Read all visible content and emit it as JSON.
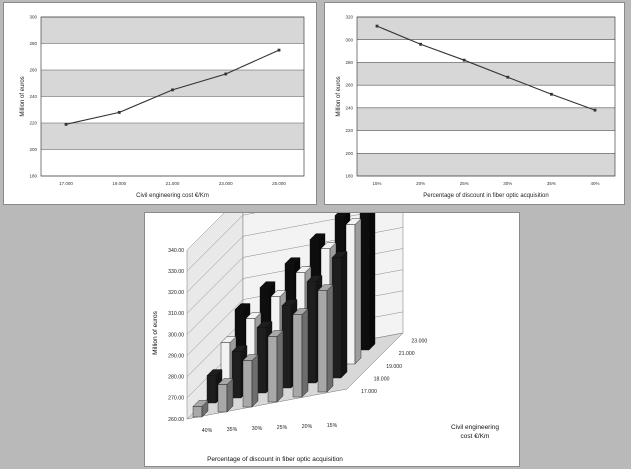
{
  "chart_data": [
    {
      "type": "line",
      "xlabel": "Civil engineering cost €/Km",
      "ylabel": "Million of euros",
      "x_ticks": [
        "17.000",
        "19.000",
        "21.000",
        "23.000",
        "25.000"
      ],
      "y_ticks": [
        "300",
        "280",
        "260",
        "240",
        "220",
        "200",
        "180"
      ],
      "x": [
        17000,
        19000,
        21000,
        23000,
        25000
      ],
      "y": [
        219,
        228,
        245,
        257,
        275
      ],
      "ylim": [
        180,
        300
      ],
      "grid": true,
      "colors": {
        "line": "#333333",
        "band": "#d7d7d7"
      }
    },
    {
      "type": "line",
      "xlabel": "Percentage of discount in fiber optic acquisition",
      "ylabel": "Million of euros",
      "x_ticks": [
        "15%",
        "20%",
        "25%",
        "30%",
        "35%",
        "40%"
      ],
      "y_ticks": [
        "320",
        "300",
        "280",
        "260",
        "240",
        "220",
        "200",
        "180"
      ],
      "x": [
        15,
        20,
        25,
        30,
        35,
        40
      ],
      "y": [
        312,
        296,
        282,
        267,
        252,
        238
      ],
      "ylim": [
        180,
        320
      ],
      "grid": true,
      "colors": {
        "line": "#333333",
        "band": "#d7d7d7"
      }
    },
    {
      "type": "bar",
      "subtype": "3d-bar",
      "ylabel": "Million of euros",
      "xlabel": "Percentage of discount in fiber optic acquisition",
      "zlabel_line1": "Civil engineering",
      "zlabel_line2": "cost €/Km",
      "y_ticks": [
        "340.00",
        "330.00",
        "320.00",
        "310.00",
        "300.00",
        "290.00",
        "280.00",
        "270.00",
        "260.00"
      ],
      "ylim": [
        260,
        340
      ],
      "categories": [
        "40%",
        "35%",
        "30%",
        "25%",
        "20%",
        "15%"
      ],
      "depth_categories": [
        "17.000",
        "19.000",
        "21.000",
        "23.000"
      ],
      "depth_ticks": [
        "23.000",
        "21.000",
        "19.000",
        "18.000",
        "17.000"
      ],
      "series": [
        {
          "values": [
            265,
            273,
            282,
            291,
            299,
            308
          ]
        },
        {
          "values": [
            273,
            282,
            291,
            299,
            308,
            317
          ]
        },
        {
          "values": [
            282,
            291,
            299,
            308,
            317,
            326
          ]
        },
        {
          "values": [
            291,
            299,
            308,
            317,
            326,
            335
          ]
        }
      ],
      "colors": {
        "front": "#a8a8a8",
        "mid1": "#1e1e1e",
        "mid2": "#f2f2f2",
        "back": "#0e0e0e"
      }
    }
  ]
}
